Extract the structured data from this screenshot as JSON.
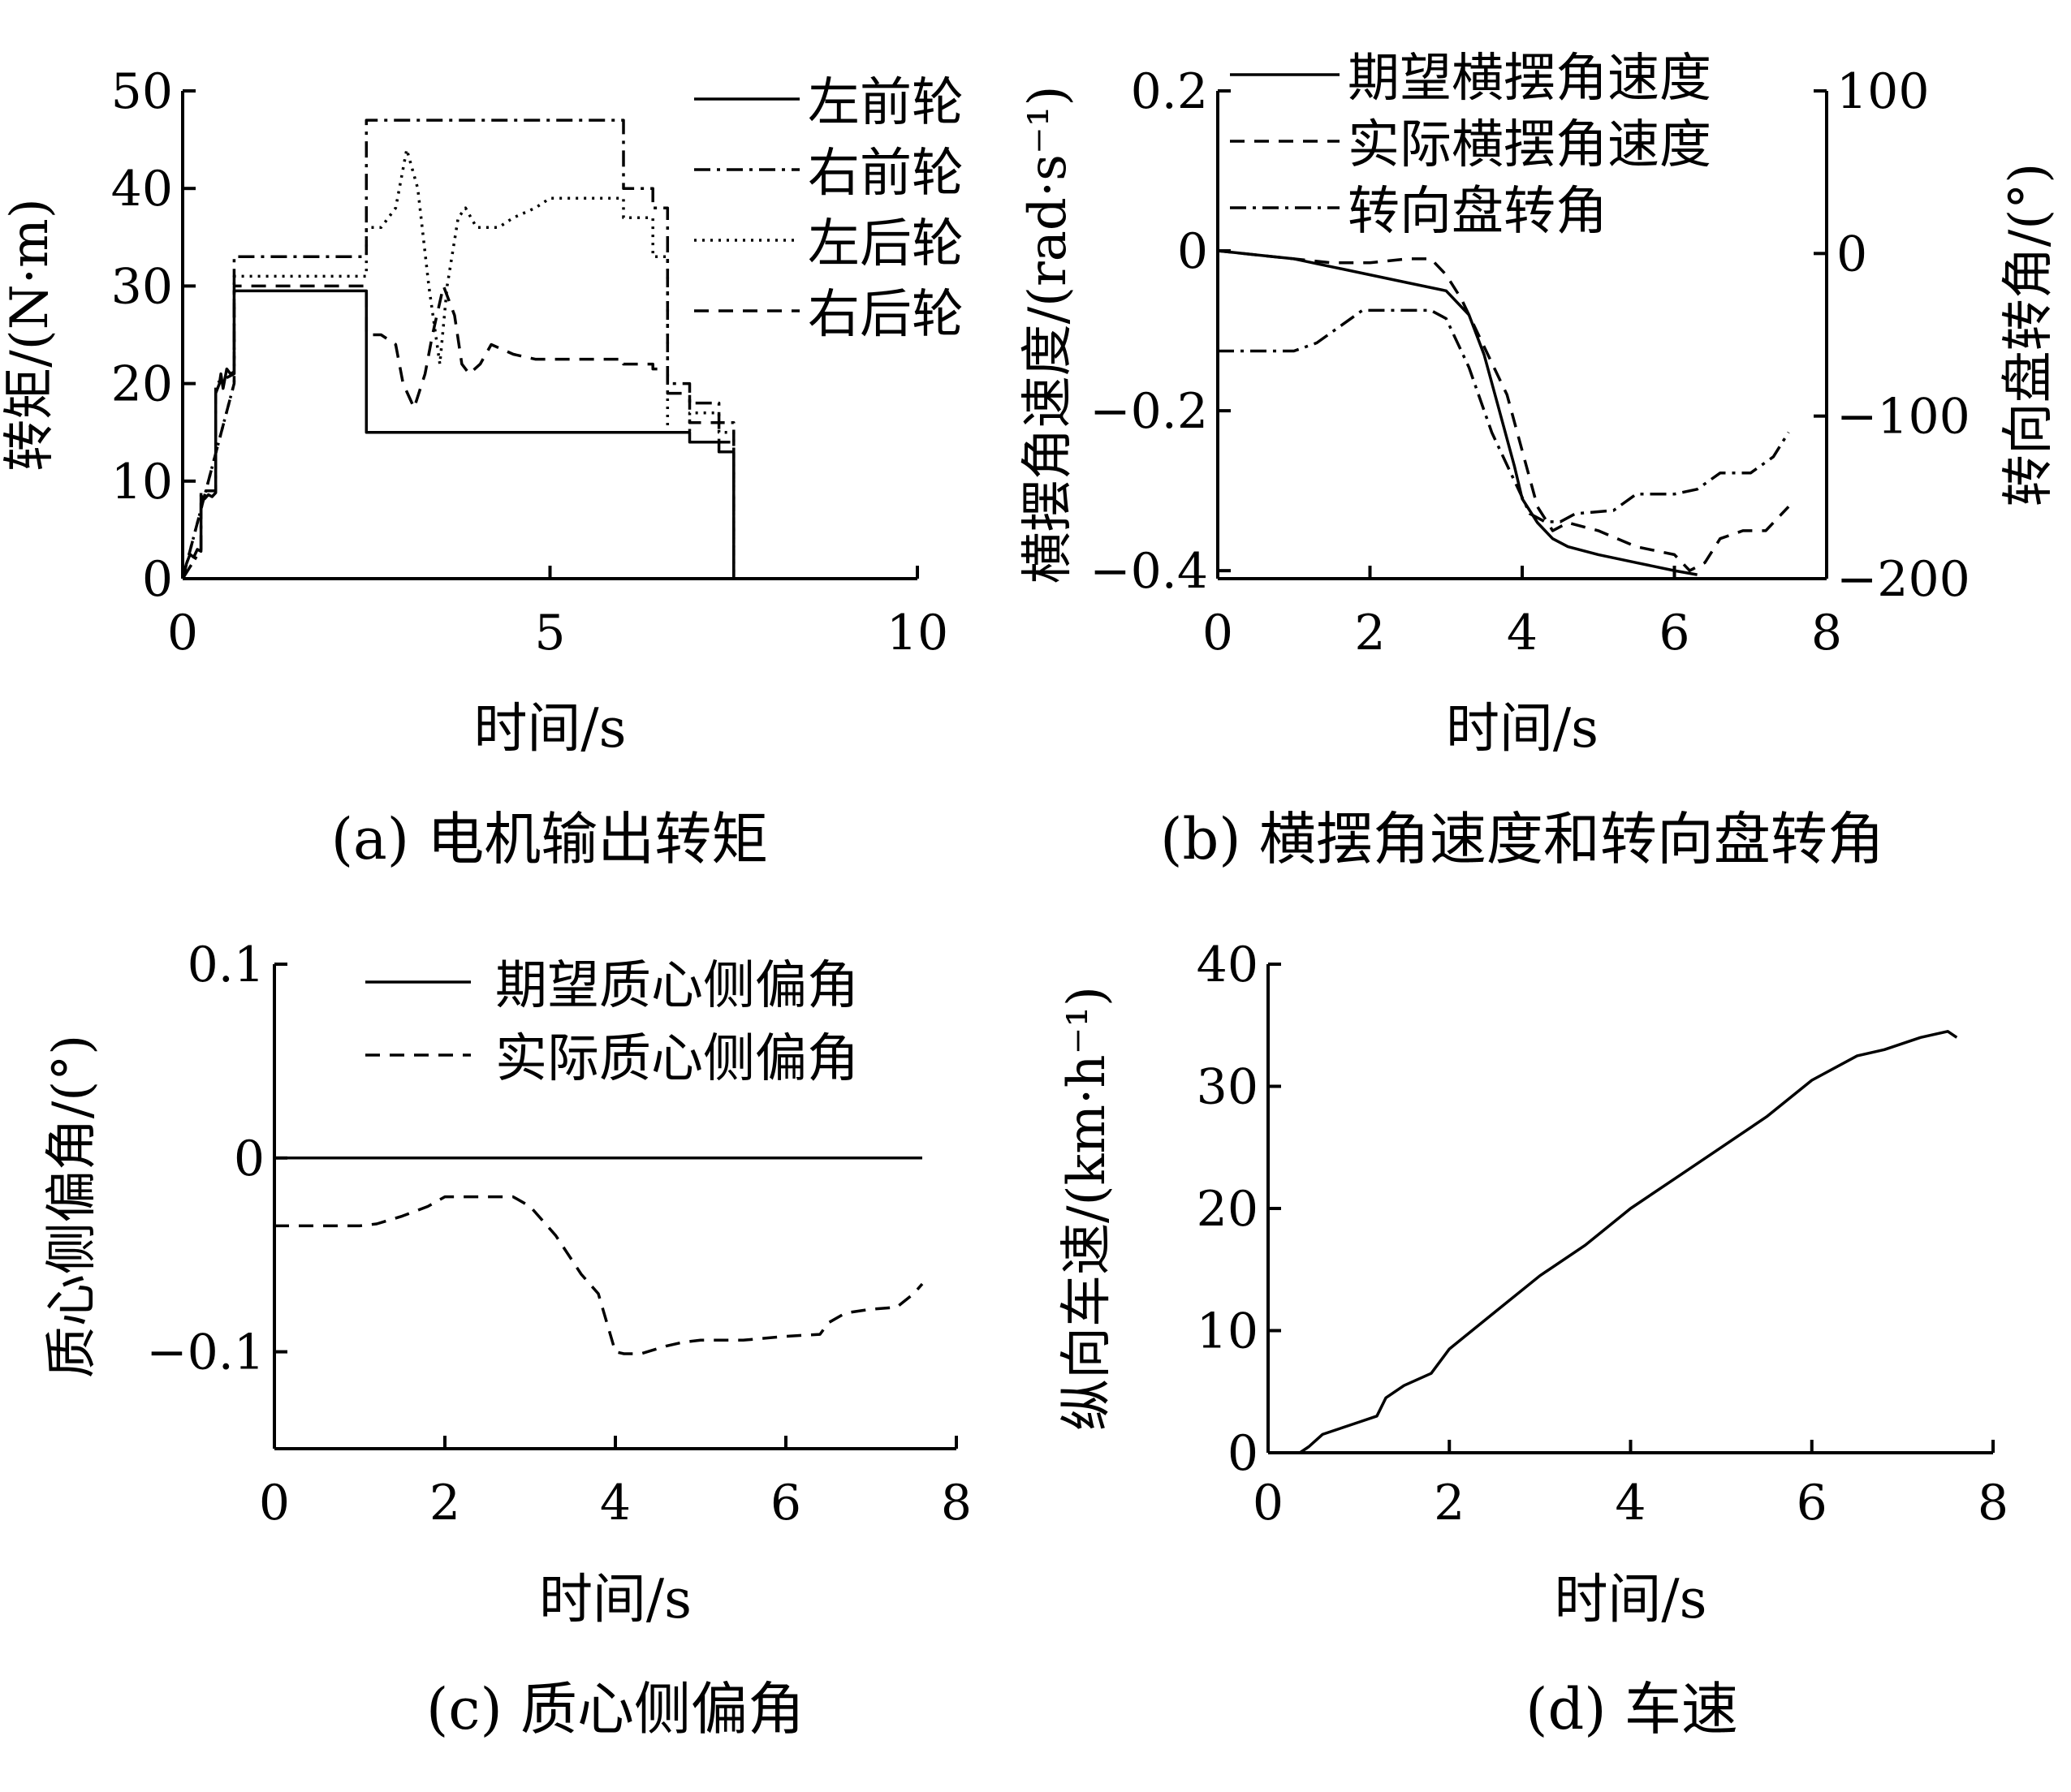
{
  "chart_data": [
    {
      "id": "a",
      "type": "line",
      "caption": "(a) 电机输出转矩",
      "xlabel": "时间/s",
      "ylabel": "转矩/(N·m)",
      "xlim": [
        0,
        10
      ],
      "ylim": [
        0,
        50
      ],
      "xticks": [
        "0",
        "5",
        "10"
      ],
      "yticks": [
        "0",
        "10",
        "20",
        "30",
        "40",
        "50"
      ],
      "legend_position": "top-right",
      "series": [
        {
          "name": "左前轮",
          "style": "solid",
          "x": [
            0,
            0.05,
            0.1,
            0.15,
            0.2,
            0.25,
            0.25,
            0.3,
            0.35,
            0.4,
            0.45,
            0.45,
            0.5,
            0.52,
            0.55,
            0.6,
            0.65,
            0.7,
            0.7,
            2.5,
            2.5,
            6.6,
            6.9,
            6.9,
            7.3,
            7.3,
            7.5,
            7.5
          ],
          "y": [
            0,
            1.5,
            2.5,
            2.2,
            3,
            2.8,
            8.5,
            8.2,
            8.6,
            8.4,
            8.8,
            19,
            20,
            21,
            19.5,
            21.5,
            21,
            21.2,
            29.5,
            29.5,
            15,
            15,
            15,
            14,
            14,
            13,
            13,
            0
          ]
        },
        {
          "name": "右前轮",
          "style": "dashdot",
          "x": [
            0,
            0.25,
            0.25,
            0.45,
            0.45,
            0.7,
            0.7,
            2.5,
            2.5,
            6.0,
            6.0,
            6.4,
            6.4,
            6.6,
            6.6,
            6.9,
            6.9,
            7.3,
            7.3,
            7.5,
            7.5
          ],
          "y": [
            0,
            3,
            9,
            9,
            20,
            21,
            33,
            33,
            47,
            47,
            40,
            40,
            38,
            38,
            20,
            20,
            18,
            18,
            16,
            16,
            0
          ]
        },
        {
          "name": "左后轮",
          "style": "dotted",
          "x": [
            0,
            0.7,
            0.7,
            2.5,
            2.5,
            2.7,
            2.9,
            3.05,
            3.2,
            3.35,
            3.5,
            3.6,
            3.75,
            3.85,
            4.0,
            4.3,
            4.5,
            4.8,
            5.0,
            5.5,
            6.0,
            6.0,
            6.4,
            6.4,
            6.6,
            6.6,
            6.9,
            6.9,
            7.3,
            7.3,
            7.5,
            7.5
          ],
          "y": [
            0,
            20,
            31,
            31,
            36,
            36,
            38,
            44,
            40,
            30,
            22,
            30,
            37,
            38,
            36,
            36,
            37,
            38,
            39,
            39,
            39,
            37,
            37,
            33,
            33,
            15,
            15,
            17,
            17,
            15,
            15,
            0
          ]
        },
        {
          "name": "右后轮",
          "style": "dashed",
          "x": [
            0,
            0.7,
            0.7,
            2.5,
            2.5,
            2.7,
            2.9,
            3.0,
            3.15,
            3.3,
            3.4,
            3.55,
            3.7,
            3.8,
            3.9,
            4.05,
            4.2,
            4.5,
            4.8,
            5.5,
            6.0,
            6.0,
            6.4,
            6.4,
            6.6,
            6.6,
            6.9,
            6.9,
            7.3,
            7.3,
            7.5,
            7.5
          ],
          "y": [
            0,
            20,
            30,
            30,
            25,
            25,
            24,
            20,
            17.5,
            21,
            25,
            30,
            27,
            22,
            21,
            22,
            24,
            23,
            22.5,
            22.5,
            22.5,
            22,
            22,
            21.5,
            21.5,
            19,
            19,
            16,
            16,
            14,
            14,
            0
          ]
        }
      ]
    },
    {
      "id": "b",
      "type": "line",
      "caption": "(b) 横摆角速度和转向盘转角",
      "xlabel": "时间/s",
      "ylabel": "横摆角速度/(rad·s⁻¹)",
      "ylabel_right": "转向盘转角/(°)",
      "xlim": [
        0,
        8
      ],
      "ylim": [
        -0.41,
        0.2
      ],
      "ylim_right": [
        -200,
        100
      ],
      "xticks": [
        "0",
        "2",
        "4",
        "6",
        "8"
      ],
      "yticks": [
        "−0.4",
        "−0.2",
        "0",
        "0.2"
      ],
      "yticks_right": [
        "−200",
        "−100",
        "0",
        "100"
      ],
      "legend_position": "top-right",
      "series": [
        {
          "name": "期望横摆角速度",
          "style": "solid",
          "axis": "left",
          "x": [
            0,
            0.5,
            1.0,
            1.5,
            2.0,
            2.5,
            3.0,
            3.3,
            3.5,
            3.7,
            3.9,
            4.0,
            4.2,
            4.4,
            4.6,
            5.0,
            5.5,
            6.0,
            6.3
          ],
          "y": [
            0,
            -0.005,
            -0.01,
            -0.02,
            -0.03,
            -0.04,
            -0.05,
            -0.08,
            -0.13,
            -0.2,
            -0.27,
            -0.31,
            -0.34,
            -0.36,
            -0.37,
            -0.38,
            -0.39,
            -0.4,
            -0.405
          ]
        },
        {
          "name": "实际横摆角速度",
          "style": "dashed",
          "axis": "left",
          "x": [
            0,
            0.5,
            1.0,
            1.5,
            2.0,
            2.5,
            2.8,
            3.0,
            3.2,
            3.4,
            3.6,
            3.8,
            4.0,
            4.2,
            4.4,
            4.6,
            5.0,
            5.5,
            6.0,
            6.2,
            6.4,
            6.6,
            6.9,
            7.2,
            7.5
          ],
          "y": [
            0,
            -0.005,
            -0.01,
            -0.015,
            -0.015,
            -0.01,
            -0.01,
            -0.03,
            -0.06,
            -0.1,
            -0.14,
            -0.18,
            -0.25,
            -0.32,
            -0.35,
            -0.34,
            -0.35,
            -0.37,
            -0.38,
            -0.4,
            -0.39,
            -0.36,
            -0.35,
            -0.35,
            -0.32
          ]
        },
        {
          "name": "转向盘转角",
          "style": "dashdot",
          "axis": "right",
          "x": [
            0,
            0.5,
            1.0,
            1.3,
            1.6,
            1.9,
            2.0,
            2.5,
            2.8,
            3.0,
            3.3,
            3.6,
            3.9,
            4.1,
            4.3,
            4.5,
            4.7,
            5.2,
            5.5,
            6.0,
            6.3,
            6.6,
            7.0,
            7.3,
            7.5
          ],
          "y": [
            -60,
            -60,
            -60,
            -55,
            -45,
            -35,
            -35,
            -35,
            -35,
            -40,
            -70,
            -110,
            -140,
            -160,
            -165,
            -165,
            -160,
            -158,
            -148,
            -148,
            -145,
            -135,
            -135,
            -125,
            -110
          ]
        }
      ]
    },
    {
      "id": "c",
      "type": "line",
      "caption": "(c) 质心侧偏角",
      "xlabel": "时间/s",
      "ylabel": "质心侧偏角/(°)",
      "xlim": [
        0,
        8
      ],
      "ylim": [
        -0.15,
        0.1
      ],
      "xticks": [
        "0",
        "2",
        "4",
        "6",
        "8"
      ],
      "yticks": [
        "−0.1",
        "0",
        "0.1"
      ],
      "legend_position": "top-right",
      "series": [
        {
          "name": "期望质心侧偏角",
          "style": "solid",
          "x": [
            0,
            7.6
          ],
          "y": [
            0,
            0
          ]
        },
        {
          "name": "实际质心侧偏角",
          "style": "dashed",
          "x": [
            0,
            1.0,
            1.2,
            1.5,
            1.8,
            2.0,
            2.5,
            2.8,
            3.0,
            3.3,
            3.6,
            3.8,
            3.9,
            4.0,
            4.1,
            4.3,
            4.6,
            4.8,
            5.0,
            5.5,
            6.0,
            6.4,
            6.5,
            6.7,
            7.0,
            7.3,
            7.5,
            7.6
          ],
          "y": [
            -0.035,
            -0.035,
            -0.034,
            -0.03,
            -0.025,
            -0.02,
            -0.02,
            -0.02,
            -0.025,
            -0.04,
            -0.06,
            -0.07,
            -0.085,
            -0.1,
            -0.101,
            -0.101,
            -0.097,
            -0.095,
            -0.094,
            -0.094,
            -0.092,
            -0.091,
            -0.085,
            -0.08,
            -0.078,
            -0.077,
            -0.07,
            -0.065
          ]
        }
      ]
    },
    {
      "id": "d",
      "type": "line",
      "caption": "(d) 车速",
      "xlabel": "时间/s",
      "ylabel": "纵向车速/(km·h⁻¹)",
      "xlim": [
        0,
        8
      ],
      "ylim": [
        0,
        40
      ],
      "xticks": [
        "0",
        "2",
        "4",
        "6",
        "8"
      ],
      "yticks": [
        "0",
        "10",
        "20",
        "30",
        "40"
      ],
      "series": [
        {
          "x": [
            0,
            0.35,
            0.45,
            0.6,
            0.8,
            1.0,
            1.2,
            1.3,
            1.5,
            1.8,
            2.0,
            2.5,
            3.0,
            3.5,
            4.0,
            4.5,
            5.0,
            5.5,
            6.0,
            6.5,
            6.8,
            7.0,
            7.2,
            7.5,
            7.6
          ],
          "y": [
            0,
            0,
            0.5,
            1.5,
            2,
            2.5,
            3,
            4.5,
            5.5,
            6.5,
            8.5,
            11.5,
            14.5,
            17,
            20,
            22.5,
            25,
            27.5,
            30.5,
            32.5,
            33,
            33.5,
            34,
            34.5,
            34
          ]
        }
      ]
    }
  ]
}
